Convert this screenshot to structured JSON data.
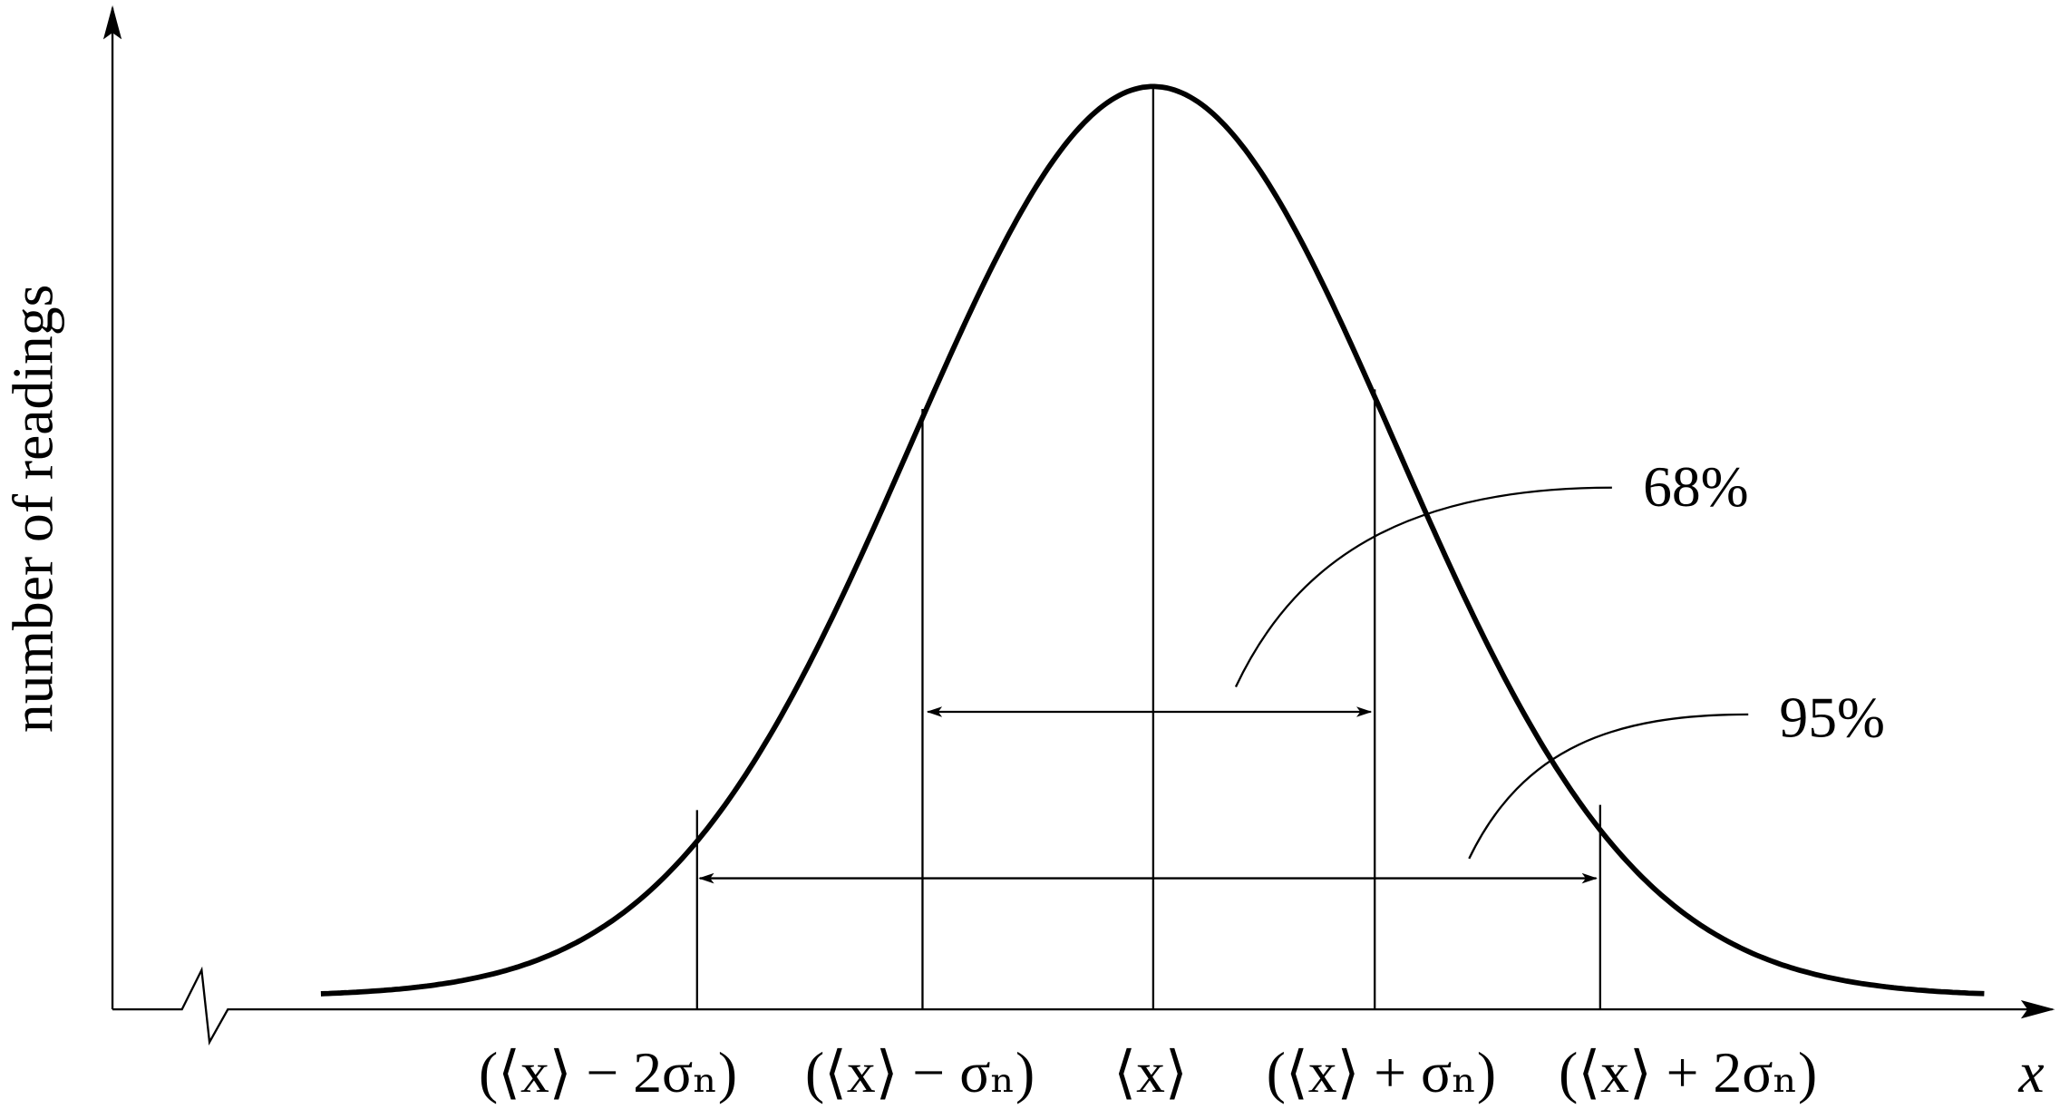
{
  "y_axis_label": "number of readings",
  "x_axis_label": "x",
  "tick_labels": [
    "(⟨x⟩ − 2σₙ)",
    "(⟨x⟩ − σₙ)",
    "⟨x⟩",
    "(⟨x⟩ + σₙ)",
    "(⟨x⟩ + 2σₙ)"
  ],
  "annotations": [
    "68%",
    "95%"
  ]
}
